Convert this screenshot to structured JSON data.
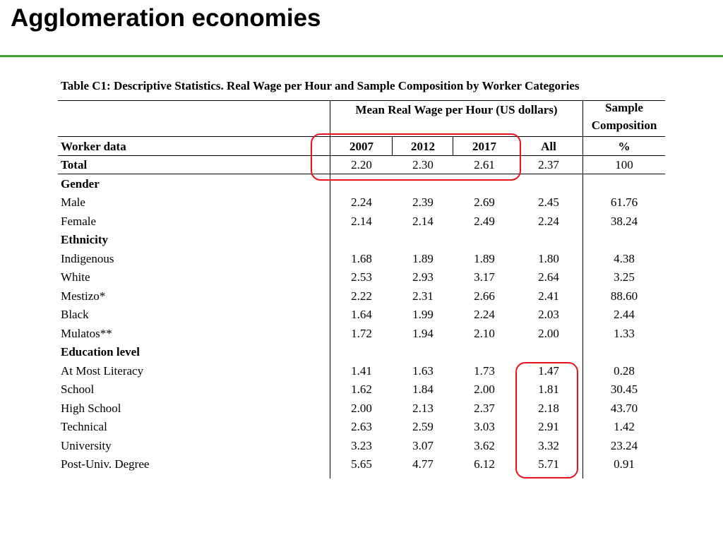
{
  "slide": {
    "title": "Agglomeration economies"
  },
  "table": {
    "caption": "Table C1: Descriptive Statistics. Real Wage per Hour and Sample Composition by Worker  Categories",
    "group_header_wage": "Mean Real Wage per Hour (US dollars)",
    "group_header_sample_line1": "Sample",
    "group_header_sample_line2": "Composition",
    "columns": [
      "Worker data",
      "2007",
      "2012",
      "2017",
      "All",
      "%"
    ],
    "total": {
      "label": "Total",
      "values": [
        "2.20",
        "2.30",
        "2.61",
        "2.37",
        "100"
      ]
    },
    "sections": [
      {
        "label": "Gender",
        "rows": [
          {
            "label": "Male",
            "values": [
              "2.24",
              "2.39",
              "2.69",
              "2.45",
              "61.76"
            ]
          },
          {
            "label": "Female",
            "values": [
              "2.14",
              "2.14",
              "2.49",
              "2.24",
              "38.24"
            ]
          }
        ]
      },
      {
        "label": "Ethnicity",
        "rows": [
          {
            "label": "Indigenous",
            "values": [
              "1.68",
              "1.89",
              "1.89",
              "1.80",
              "4.38"
            ]
          },
          {
            "label": "White",
            "values": [
              "2.53",
              "2.93",
              "3.17",
              "2.64",
              "3.25"
            ]
          },
          {
            "label": "Mestizo*",
            "values": [
              "2.22",
              "2.31",
              "2.66",
              "2.41",
              "88.60"
            ]
          },
          {
            "label": "Black",
            "values": [
              "1.64",
              "1.99",
              "2.24",
              "2.03",
              "2.44"
            ]
          },
          {
            "label": "Mulatos**",
            "values": [
              "1.72",
              "1.94",
              "2.10",
              "2.00",
              "1.33"
            ]
          }
        ]
      },
      {
        "label": "Education level",
        "rows": [
          {
            "label": "At Most Literacy",
            "values": [
              "1.41",
              "1.63",
              "1.73",
              "1.47",
              "0.28"
            ]
          },
          {
            "label": "School",
            "values": [
              "1.62",
              "1.84",
              "2.00",
              "1.81",
              "30.45"
            ]
          },
          {
            "label": "High School",
            "values": [
              "2.00",
              "2.13",
              "2.37",
              "2.18",
              "43.70"
            ]
          },
          {
            "label": "Technical",
            "values": [
              "2.63",
              "2.59",
              "3.03",
              "2.91",
              "1.42"
            ]
          },
          {
            "label": "University",
            "values": [
              "3.23",
              "3.07",
              "3.62",
              "3.32",
              "23.24"
            ]
          },
          {
            "label": "Post-Univ. Degree",
            "values": [
              "5.65",
              "4.77",
              "6.12",
              "5.71",
              "0.91"
            ]
          }
        ]
      }
    ]
  },
  "highlight_color": "#e8101a",
  "accent_color": "#3aa02a"
}
